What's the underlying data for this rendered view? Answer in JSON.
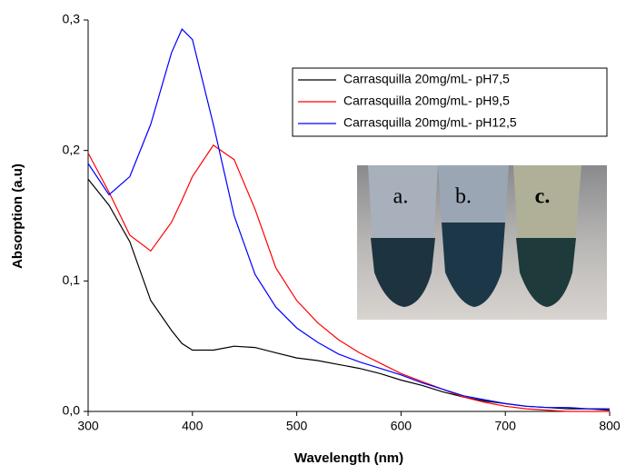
{
  "chart_data": {
    "type": "line",
    "x_label": "Wavelength (nm)",
    "y_label": "Absorption (a.u)",
    "x": [
      300,
      320,
      340,
      360,
      380,
      390,
      400,
      420,
      440,
      460,
      480,
      500,
      520,
      540,
      560,
      580,
      600,
      620,
      640,
      660,
      680,
      700,
      720,
      740,
      760,
      780,
      800
    ],
    "series": [
      {
        "name": "Carrasquilla 20mg/mL- pH7,5",
        "color": "#000000",
        "values": [
          0.178,
          0.158,
          0.13,
          0.085,
          0.062,
          0.052,
          0.047,
          0.047,
          0.05,
          0.049,
          0.045,
          0.041,
          0.039,
          0.036,
          0.033,
          0.029,
          0.024,
          0.02,
          0.015,
          0.011,
          0.008,
          0.006,
          0.004,
          0.003,
          0.002,
          0.002,
          0.001
        ]
      },
      {
        "name": "Carrasquilla 20mg/mL- pH9,5",
        "color": "#ff0000",
        "values": [
          0.198,
          0.168,
          0.135,
          0.123,
          0.145,
          0.162,
          0.18,
          0.204,
          0.193,
          0.155,
          0.11,
          0.085,
          0.068,
          0.055,
          0.045,
          0.037,
          0.029,
          0.023,
          0.017,
          0.011,
          0.007,
          0.004,
          0.002,
          0.001,
          0.0,
          0.0,
          0.0
        ]
      },
      {
        "name": "Carrasquilla 20mg/mL- pH12,5",
        "color": "#0000ff",
        "values": [
          0.19,
          0.166,
          0.18,
          0.22,
          0.275,
          0.293,
          0.285,
          0.22,
          0.15,
          0.105,
          0.08,
          0.064,
          0.053,
          0.044,
          0.038,
          0.033,
          0.028,
          0.022,
          0.017,
          0.012,
          0.009,
          0.006,
          0.004,
          0.003,
          0.003,
          0.002,
          0.002
        ]
      }
    ],
    "xlim": [
      300,
      800
    ],
    "xticks": [
      300,
      400,
      500,
      600,
      700,
      800
    ],
    "ylim": [
      0,
      0.3
    ],
    "yticks": [
      {
        "value": 0,
        "label": "0,0"
      },
      {
        "value": 0.1,
        "label": "0,1"
      },
      {
        "value": 0.2,
        "label": "0,2"
      },
      {
        "value": 0.3,
        "label": "0,3"
      }
    ],
    "legend": "upper right",
    "inset_labels": [
      "a.",
      "b.",
      "c."
    ]
  }
}
